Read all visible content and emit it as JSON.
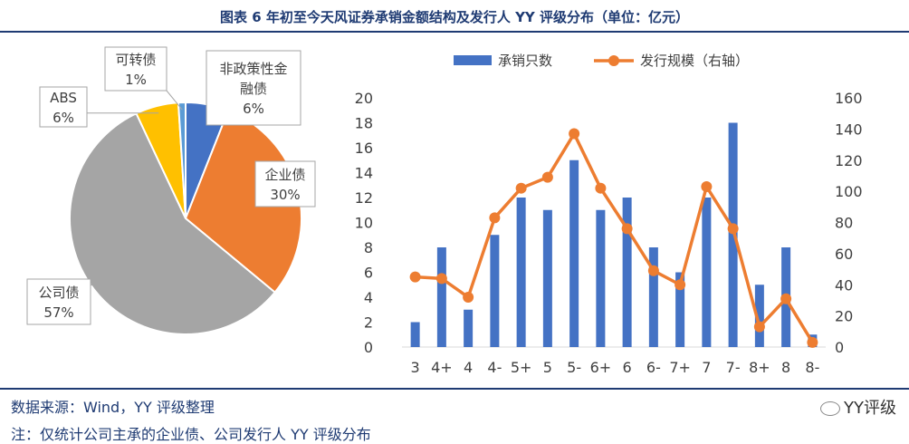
{
  "title": "图表 6 年初至今天风证券承销金额结构及发行人 YY 评级分布（单位：亿元）",
  "footer": {
    "source": "数据来源：Wind，YY 评级整理",
    "note": "注：仅统计公司主承的企业债、公司发行人 YY 评级分布",
    "brand": "YY评级"
  },
  "chart_data": [
    {
      "type": "pie",
      "slices": [
        {
          "label": "非政策性金融债",
          "percent_label": "6%",
          "value": 6,
          "color": "#4472c4"
        },
        {
          "label": "企业债",
          "percent_label": "30%",
          "value": 30,
          "color": "#ed7d31"
        },
        {
          "label": "公司债",
          "percent_label": "57%",
          "value": 57,
          "color": "#a5a5a5"
        },
        {
          "label": "ABS",
          "percent_label": "6%",
          "value": 6,
          "color": "#ffc000"
        },
        {
          "label": "可转债",
          "percent_label": "1%",
          "value": 1,
          "color": "#5b9bd5"
        }
      ]
    },
    {
      "type": "bar+line",
      "categories": [
        "3",
        "4+",
        "4",
        "4-",
        "5+",
        "5",
        "5-",
        "6+",
        "6",
        "6-",
        "7+",
        "7",
        "7-",
        "8+",
        "8",
        "8-"
      ],
      "series": [
        {
          "name": "承销只数",
          "type": "bar",
          "axis": "left",
          "color": "#4472c4",
          "values": [
            2,
            8,
            3,
            9,
            12,
            11,
            15,
            11,
            12,
            8,
            6,
            12,
            18,
            5,
            8,
            1
          ]
        },
        {
          "name": "发行规模（右轴）",
          "type": "line",
          "axis": "right",
          "color": "#ed7d31",
          "values": [
            45,
            44,
            32,
            83,
            102,
            109,
            137,
            102,
            76,
            49,
            40,
            103,
            76,
            13,
            31,
            3
          ]
        }
      ],
      "y_left": {
        "min": 0,
        "max": 20,
        "ticks": [
          "0",
          "2",
          "4",
          "6",
          "8",
          "10",
          "12",
          "14",
          "16",
          "18",
          "20"
        ]
      },
      "y_right": {
        "min": 0,
        "max": 160,
        "ticks": [
          "0",
          "20",
          "40",
          "60",
          "80",
          "100",
          "120",
          "140",
          "160"
        ]
      },
      "grid": false,
      "legend": "top"
    }
  ]
}
